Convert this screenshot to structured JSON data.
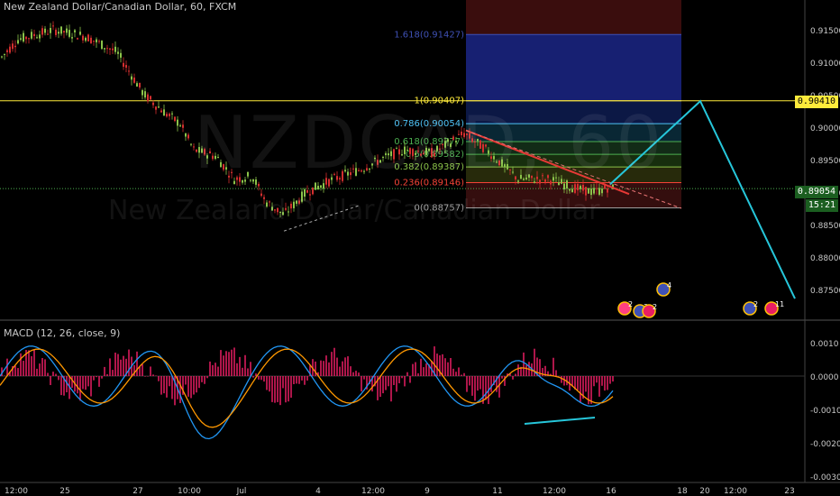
{
  "header": {
    "title": "New Zealand Dollar/Canadian Dollar, 60, FXCM",
    "watermark_symbol": "NZDCAD, 60",
    "watermark_name": "New Zealand Dollar/Canadian Dollar"
  },
  "price_axis": {
    "ticks": [
      "0.91500",
      "0.91000",
      "0.90500",
      "0.90000",
      "0.89500",
      "0.89000",
      "0.88500",
      "0.88000",
      "0.87500"
    ],
    "tick_values": [
      0.915,
      0.91,
      0.905,
      0.9,
      0.895,
      0.89,
      0.885,
      0.88,
      0.875
    ],
    "horizontal_line_label": "0.90410",
    "current_price_label": "0.89054",
    "countdown_label": "15:21"
  },
  "time_axis": {
    "ticks": [
      "12:00",
      "25",
      "27",
      "10:00",
      "Jul",
      "4",
      "12:00",
      "9",
      "11",
      "12:00",
      "16",
      "18",
      "20",
      "12:00",
      "23"
    ]
  },
  "fibonacci": {
    "levels": [
      {
        "label": "1.618(0.91427)",
        "ratio": 1.618,
        "price": 0.91427,
        "color": "#3f51b5"
      },
      {
        "label": "1(0.90407)",
        "ratio": 1,
        "price": 0.90407,
        "color": "#ffeb3b"
      },
      {
        "label": "0.786(0.90054)",
        "ratio": 0.786,
        "price": 0.90054,
        "color": "#4fc3f7"
      },
      {
        "label": "0.618(0.89777)",
        "ratio": 0.618,
        "price": 0.89777,
        "color": "#4caf50"
      },
      {
        "label": "0.5(0.89582)",
        "ratio": 0.5,
        "price": 0.89582,
        "color": "#4caf50"
      },
      {
        "label": "0.382(0.89387)",
        "ratio": 0.382,
        "price": 0.89387,
        "color": "#8bc34a"
      },
      {
        "label": "0.236(0.89146)",
        "ratio": 0.236,
        "price": 0.89146,
        "color": "#f44336"
      },
      {
        "label": "0(0.88757)",
        "ratio": 0,
        "price": 0.88757,
        "color": "#9e9e9e"
      }
    ]
  },
  "macd": {
    "label": "MACD (12, 26, close, 9)",
    "ticks": [
      "0.0010",
      "0.0000",
      "-0.0010",
      "-0.0020",
      "-0.0030"
    ],
    "tick_values": [
      0.001,
      0,
      -0.001,
      -0.002,
      -0.003
    ]
  },
  "event_badges": [
    {
      "text": "2",
      "color": "#ff4081"
    },
    {
      "text": "3",
      "color": "#3f51b5"
    },
    {
      "text": "2",
      "color": "#e91e63"
    },
    {
      "text": "4",
      "color": "#3f51b5"
    },
    {
      "text": "2",
      "color": "#3f51b5"
    },
    {
      "text": "11",
      "color": "#e91e63"
    }
  ],
  "colors": {
    "up_candle": "#8bc34a",
    "down_candle": "#d32f2f",
    "projection": "#26c6da",
    "trendline": "#e53935",
    "macd_line": "#2196f3",
    "signal_line": "#ff9800",
    "histogram": "#e91e63",
    "hline": "#ffeb3b"
  }
}
